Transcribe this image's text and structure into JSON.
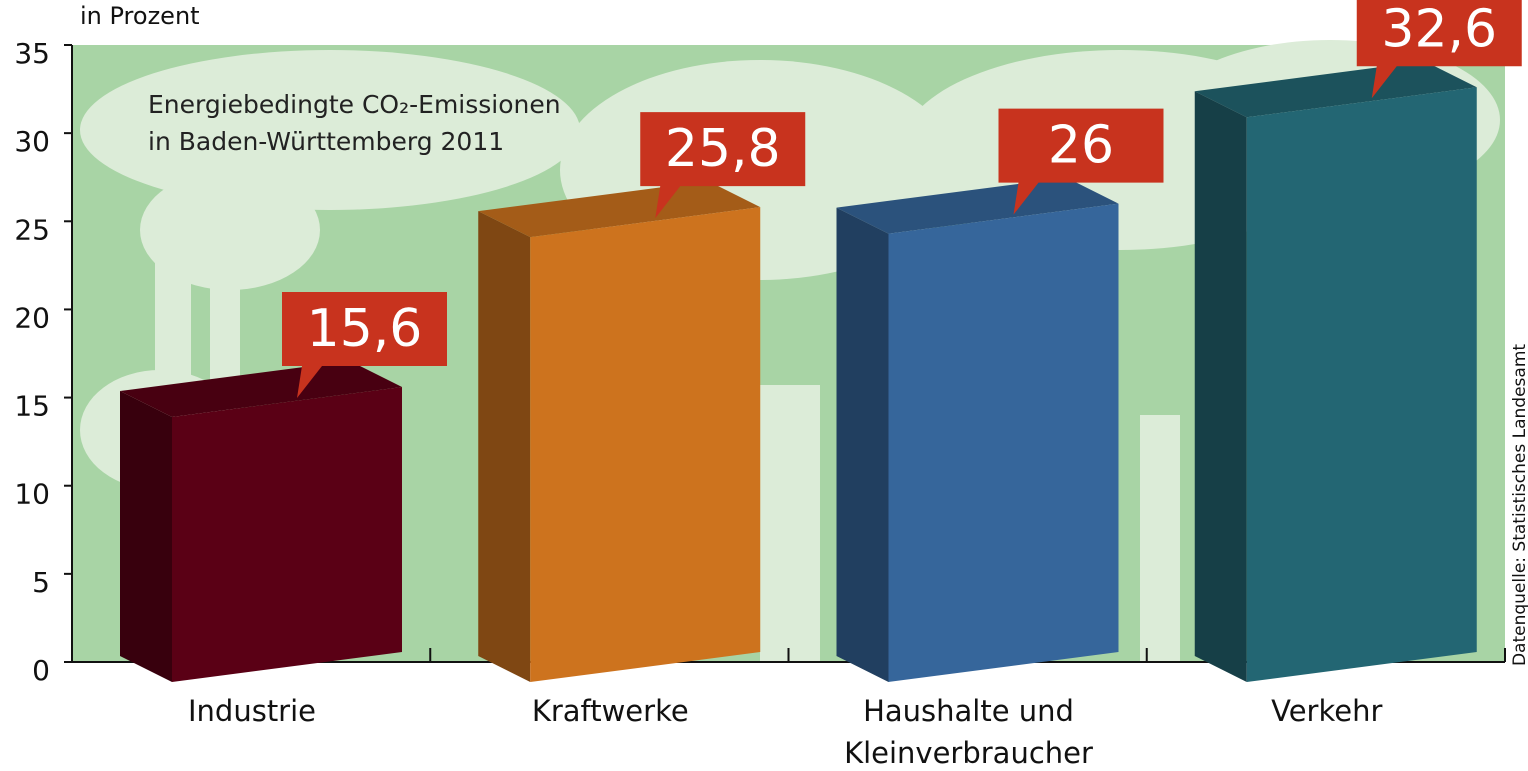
{
  "chart_data": {
    "type": "bar3d",
    "title": [
      "Energiebedingte CO₂-Emissionen",
      "in Baden-Württemberg 2011"
    ],
    "y_axis_label": "in Prozent",
    "source": "Datenquelle: Statistisches Landesamt",
    "categories": [
      "Industrie",
      "Kraftwerke",
      [
        "Haushalte und",
        "Kleinverbraucher"
      ],
      "Verkehr"
    ],
    "values": [
      15.6,
      25.8,
      26,
      32.6
    ],
    "value_labels": [
      "15,6",
      "25,8",
      "26",
      "32,6"
    ],
    "colors": [
      "#5a0015",
      "#cd731e",
      "#36669b",
      "#236673"
    ],
    "label_color": "#c8331e",
    "ylim": [
      0,
      35
    ],
    "yticks": [
      0,
      5,
      10,
      15,
      20,
      25,
      30,
      35
    ]
  }
}
